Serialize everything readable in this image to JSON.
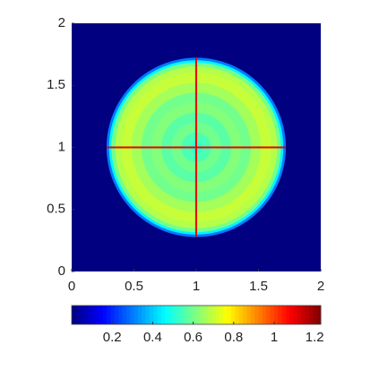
{
  "chart_data": {
    "type": "heatmap",
    "colormap": "jet",
    "xlim": [
      0,
      2
    ],
    "ylim": [
      0,
      2
    ],
    "xticks": [
      0,
      0.5,
      1,
      1.5,
      2
    ],
    "yticks": [
      0,
      0.5,
      1,
      1.5,
      2
    ],
    "background_value": 0,
    "center": [
      1,
      1
    ],
    "r": [
      0.05,
      0.12,
      0.2,
      0.28,
      0.36,
      0.44,
      0.52,
      0.6,
      0.65,
      0.68,
      0.7,
      0.72
    ],
    "values": [
      0.52,
      0.55,
      0.6,
      0.57,
      0.62,
      0.6,
      0.66,
      0.7,
      0.68,
      0.6,
      0.45,
      0.3
    ],
    "cross_value": 1.1,
    "cross_extent": [
      0.28,
      1.72
    ],
    "clim": [
      0,
      1.23
    ],
    "cticks": [
      0.2,
      0.4,
      0.6,
      0.8,
      1,
      1.2
    ]
  }
}
